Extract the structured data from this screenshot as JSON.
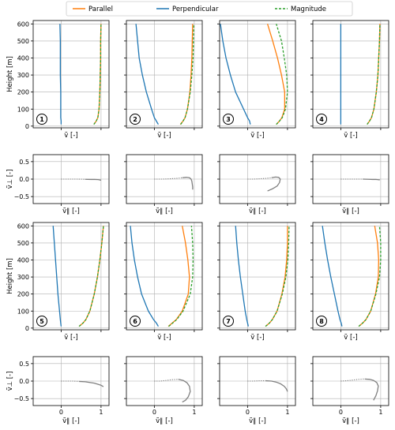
{
  "legend": {
    "parallel": "Parallel",
    "perpendicular": "Perpendicular",
    "magnitude": "Magnitude"
  },
  "colors": {
    "parallel": "#ff7f0e",
    "perpendicular": "#1f77b4",
    "magnitude": "#2ca02c",
    "hodograph": "#7f7f7f",
    "grid": "#b0b0b0"
  },
  "labels": {
    "height_ylabel": "Height [m]",
    "profile_xlabel": "ṽ [-]",
    "hodo_xlabel": "ṽ∥ [-]",
    "hodo_ylabel": "ṽ⊥ [-]"
  },
  "chart_data": {
    "type": "line",
    "profile_axes": {
      "xlim": [
        -0.7,
        1.2
      ],
      "ylim": [
        -10,
        620
      ],
      "xticks": [
        0,
        1
      ],
      "yticks": [
        0,
        100,
        200,
        300,
        400,
        500,
        600
      ],
      "ytick_labels": [
        "0",
        "100",
        "200",
        "300",
        "400",
        "500",
        "600"
      ],
      "grid": true,
      "legend_placement": "top-center"
    },
    "hodograph_axes": {
      "xlim": [
        -0.7,
        1.2
      ],
      "ylim": [
        -0.7,
        0.7
      ],
      "xticks": [
        0,
        1
      ],
      "yticks": [
        -0.5,
        0.0,
        0.5
      ],
      "ytick_labels": [
        "−0.5",
        "0.0",
        "0.5"
      ],
      "xtick_labels": [
        "0",
        "1"
      ],
      "grid": true
    },
    "panels": [
      {
        "id": "1",
        "height": [
          10,
          30,
          50,
          100,
          200,
          300,
          400,
          500,
          600
        ],
        "parallel": [
          0.82,
          0.88,
          0.92,
          0.95,
          0.97,
          0.98,
          0.99,
          0.99,
          1.0
        ],
        "perpendicular": [
          0.0,
          0.0,
          -0.01,
          -0.01,
          -0.01,
          -0.02,
          -0.02,
          -0.02,
          -0.03
        ],
        "magnitude": [
          0.82,
          0.88,
          0.92,
          0.95,
          0.97,
          0.98,
          0.99,
          0.99,
          1.0
        ],
        "hodo_u": [
          0.0,
          0.2,
          0.4,
          0.6,
          0.75,
          0.85,
          0.92,
          0.96,
          0.98,
          1.0
        ],
        "hodo_v": [
          0.0,
          0.0,
          0.0,
          -0.005,
          -0.01,
          -0.01,
          -0.015,
          -0.02,
          -0.03,
          -0.03
        ]
      },
      {
        "id": "2",
        "height": [
          10,
          30,
          50,
          100,
          200,
          300,
          400,
          500,
          600
        ],
        "parallel": [
          0.65,
          0.72,
          0.77,
          0.83,
          0.89,
          0.92,
          0.94,
          0.95,
          0.96
        ],
        "perpendicular": [
          0.1,
          0.05,
          0.0,
          -0.07,
          -0.2,
          -0.3,
          -0.38,
          -0.42,
          -0.46
        ],
        "magnitude": [
          0.66,
          0.72,
          0.77,
          0.83,
          0.9,
          0.94,
          0.97,
          0.98,
          0.99
        ],
        "hodo_u": [
          0.0,
          0.2,
          0.4,
          0.55,
          0.7,
          0.8,
          0.88,
          0.92,
          0.94,
          0.95,
          0.96,
          0.96
        ],
        "hodo_v": [
          0.0,
          0.0,
          0.01,
          0.02,
          0.04,
          0.05,
          0.04,
          0.0,
          -0.06,
          -0.14,
          -0.22,
          -0.3
        ]
      },
      {
        "id": "3",
        "height": [
          10,
          30,
          50,
          100,
          200,
          300,
          400,
          500,
          600
        ],
        "parallel": [
          0.72,
          0.8,
          0.86,
          0.93,
          0.93,
          0.85,
          0.75,
          0.63,
          0.5
        ],
        "perpendicular": [
          0.07,
          0.05,
          0.0,
          -0.1,
          -0.3,
          -0.43,
          -0.54,
          -0.62,
          -0.68
        ],
        "magnitude": [
          0.72,
          0.8,
          0.87,
          0.95,
          1.0,
          0.98,
          0.92,
          0.85,
          0.72
        ],
        "hodo_u": [
          0.0,
          0.15,
          0.3,
          0.45,
          0.6,
          0.7,
          0.78,
          0.82,
          0.8,
          0.74,
          0.62,
          0.5
        ],
        "hodo_v": [
          0.0,
          0.0,
          0.01,
          0.02,
          0.04,
          0.06,
          0.05,
          0.0,
          -0.1,
          -0.2,
          -0.28,
          -0.34
        ]
      },
      {
        "id": "4",
        "height": [
          10,
          30,
          50,
          100,
          200,
          300,
          400,
          500,
          600
        ],
        "parallel": [
          0.66,
          0.72,
          0.77,
          0.83,
          0.89,
          0.93,
          0.95,
          0.97,
          0.98
        ],
        "perpendicular": [
          0.0,
          0.0,
          0.0,
          0.0,
          0.0,
          0.0,
          0.0,
          0.0,
          0.0
        ],
        "magnitude": [
          0.66,
          0.72,
          0.77,
          0.83,
          0.89,
          0.93,
          0.95,
          0.97,
          0.98
        ],
        "hodo_u": [
          0.0,
          0.2,
          0.4,
          0.55,
          0.7,
          0.8,
          0.88,
          0.92,
          0.95,
          0.98
        ],
        "hodo_v": [
          0.0,
          0.0,
          0.0,
          0.0,
          -0.005,
          -0.01,
          -0.01,
          -0.015,
          -0.02,
          -0.02
        ]
      },
      {
        "id": "5",
        "height": [
          10,
          30,
          50,
          100,
          200,
          300,
          400,
          500,
          600
        ],
        "parallel": [
          0.45,
          0.55,
          0.62,
          0.72,
          0.83,
          0.91,
          0.97,
          1.02,
          1.06
        ],
        "perpendicular": [
          0.0,
          -0.01,
          -0.02,
          -0.04,
          -0.08,
          -0.11,
          -0.14,
          -0.17,
          -0.2
        ],
        "magnitude": [
          0.45,
          0.55,
          0.62,
          0.72,
          0.83,
          0.91,
          0.97,
          1.02,
          1.06
        ],
        "hodo_u": [
          0.0,
          0.15,
          0.3,
          0.45,
          0.6,
          0.72,
          0.83,
          0.92,
          1.0,
          1.06
        ],
        "hodo_v": [
          0.0,
          0.0,
          0.0,
          -0.01,
          -0.02,
          -0.04,
          -0.06,
          -0.09,
          -0.12,
          -0.16
        ]
      },
      {
        "id": "6",
        "height": [
          10,
          30,
          50,
          100,
          200,
          300,
          400,
          500,
          600
        ],
        "parallel": [
          0.35,
          0.45,
          0.55,
          0.7,
          0.85,
          0.88,
          0.84,
          0.78,
          0.7
        ],
        "perpendicular": [
          0.1,
          0.05,
          -0.02,
          -0.15,
          -0.32,
          -0.42,
          -0.5,
          -0.56,
          -0.6
        ],
        "magnitude": [
          0.36,
          0.46,
          0.56,
          0.72,
          0.9,
          0.96,
          0.97,
          0.96,
          0.93
        ],
        "hodo_u": [
          0.0,
          0.15,
          0.3,
          0.45,
          0.6,
          0.72,
          0.82,
          0.88,
          0.9,
          0.85,
          0.78,
          0.7
        ],
        "hodo_v": [
          0.0,
          0.0,
          0.02,
          0.04,
          0.05,
          0.02,
          -0.05,
          -0.15,
          -0.3,
          -0.45,
          -0.55,
          -0.6
        ]
      },
      {
        "id": "7",
        "height": [
          10,
          30,
          50,
          100,
          200,
          300,
          400,
          500,
          600
        ],
        "parallel": [
          0.45,
          0.55,
          0.62,
          0.74,
          0.86,
          0.94,
          0.98,
          1.0,
          1.0
        ],
        "perpendicular": [
          0.02,
          0.0,
          -0.02,
          -0.06,
          -0.12,
          -0.18,
          -0.23,
          -0.27,
          -0.3
        ],
        "magnitude": [
          0.45,
          0.55,
          0.62,
          0.74,
          0.87,
          0.96,
          1.01,
          1.03,
          1.04
        ],
        "hodo_u": [
          0.0,
          0.15,
          0.3,
          0.45,
          0.6,
          0.72,
          0.83,
          0.92,
          0.97,
          1.0
        ],
        "hodo_v": [
          0.0,
          0.0,
          0.01,
          0.01,
          0.0,
          -0.03,
          -0.08,
          -0.15,
          -0.22,
          -0.3
        ]
      },
      {
        "id": "8",
        "height": [
          10,
          30,
          50,
          100,
          200,
          300,
          400,
          500,
          600
        ],
        "parallel": [
          0.45,
          0.55,
          0.63,
          0.75,
          0.87,
          0.94,
          0.95,
          0.92,
          0.85
        ],
        "perpendicular": [
          0.03,
          0.01,
          -0.02,
          -0.07,
          -0.16,
          -0.25,
          -0.33,
          -0.4,
          -0.46
        ],
        "magnitude": [
          0.45,
          0.55,
          0.63,
          0.75,
          0.88,
          0.97,
          1.0,
          1.0,
          0.97
        ],
        "hodo_u": [
          0.0,
          0.15,
          0.3,
          0.45,
          0.6,
          0.72,
          0.82,
          0.9,
          0.94,
          0.92,
          0.88,
          0.82
        ],
        "hodo_v": [
          0.0,
          0.01,
          0.03,
          0.05,
          0.06,
          0.05,
          0.02,
          -0.04,
          -0.14,
          -0.28,
          -0.42,
          -0.55
        ]
      }
    ]
  }
}
